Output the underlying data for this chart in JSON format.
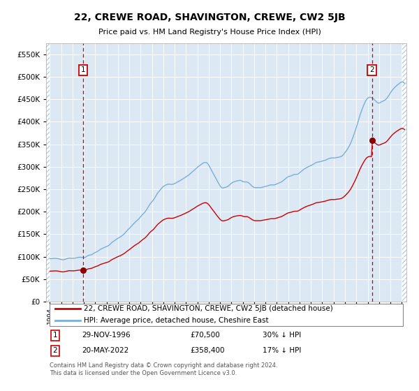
{
  "title": "22, CREWE ROAD, SHAVINGTON, CREWE, CW2 5JB",
  "subtitle": "Price paid vs. HM Land Registry's House Price Index (HPI)",
  "ylim": [
    0,
    575000
  ],
  "yticks": [
    0,
    50000,
    100000,
    150000,
    200000,
    250000,
    300000,
    350000,
    400000,
    450000,
    500000,
    550000
  ],
  "ytick_labels": [
    "£0",
    "£50K",
    "£100K",
    "£150K",
    "£200K",
    "£250K",
    "£300K",
    "£350K",
    "£400K",
    "£450K",
    "£500K",
    "£550K"
  ],
  "hpi_color": "#7aaed6",
  "price_color": "#cc0000",
  "bg_color": "#dce9f5",
  "hatch_color": "#b8cfe0",
  "sale1_date": "29-NOV-1996",
  "sale1_price_str": "£70,500",
  "sale1_pct": "30% ↓ HPI",
  "sale2_date": "20-MAY-2022",
  "sale2_price_str": "£358,400",
  "sale2_pct": "17% ↓ HPI",
  "legend_label1": "22, CREWE ROAD, SHAVINGTON, CREWE, CW2 5JB (detached house)",
  "legend_label2": "HPI: Average price, detached house, Cheshire East",
  "footnote": "Contains HM Land Registry data © Crown copyright and database right 2024.\nThis data is licensed under the Open Government Licence v3.0.",
  "sale1_year": 1996,
  "sale1_month": 11,
  "sale1_day": 29,
  "sale1_price": 70500,
  "sale2_year": 2022,
  "sale2_month": 5,
  "sale2_day": 20,
  "sale2_price": 358400
}
